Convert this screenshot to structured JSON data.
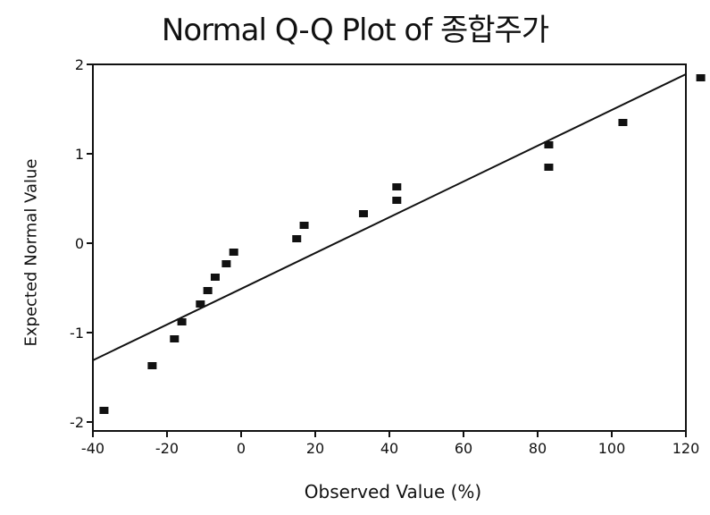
{
  "chart_data": {
    "type": "scatter",
    "title": "Normal Q-Q Plot of 종합주가",
    "xlabel": "Observed Value (%)",
    "ylabel": "Expected Normal Value",
    "xlim": [
      -40,
      120
    ],
    "ylim": [
      -2.1,
      2.0
    ],
    "xticks": [
      -40,
      -20,
      0,
      20,
      40,
      60,
      80,
      100,
      120
    ],
    "xtick_labels": [
      "-40",
      "-20",
      "0",
      "20",
      "40",
      "60",
      "80",
      "100",
      "120"
    ],
    "yticks": [
      -2,
      -1,
      0,
      1,
      2
    ],
    "ytick_labels": [
      "-2",
      "-1",
      "0",
      "1",
      "2"
    ],
    "grid": false,
    "legend": "none",
    "series": [
      {
        "values": [
          {
            "x": -37,
            "y": -1.87
          },
          {
            "x": -24,
            "y": -1.37
          },
          {
            "x": -18,
            "y": -1.07
          },
          {
            "x": -16,
            "y": -0.88
          },
          {
            "x": -11,
            "y": -0.68
          },
          {
            "x": -9,
            "y": -0.53
          },
          {
            "x": -7,
            "y": -0.38
          },
          {
            "x": -4,
            "y": -0.23
          },
          {
            "x": -2,
            "y": -0.1
          },
          {
            "x": 15,
            "y": 0.05
          },
          {
            "x": 17,
            "y": 0.2
          },
          {
            "x": 33,
            "y": 0.33
          },
          {
            "x": 42,
            "y": 0.48
          },
          {
            "x": 42,
            "y": 0.63
          },
          {
            "x": 83,
            "y": 0.85
          },
          {
            "x": 83,
            "y": 1.1
          },
          {
            "x": 103,
            "y": 1.35
          },
          {
            "x": 124,
            "y": 1.85
          }
        ]
      }
    ],
    "reference_line": [
      {
        "x": -40,
        "y": -1.31
      },
      {
        "x": 122,
        "y": 1.93
      }
    ]
  }
}
